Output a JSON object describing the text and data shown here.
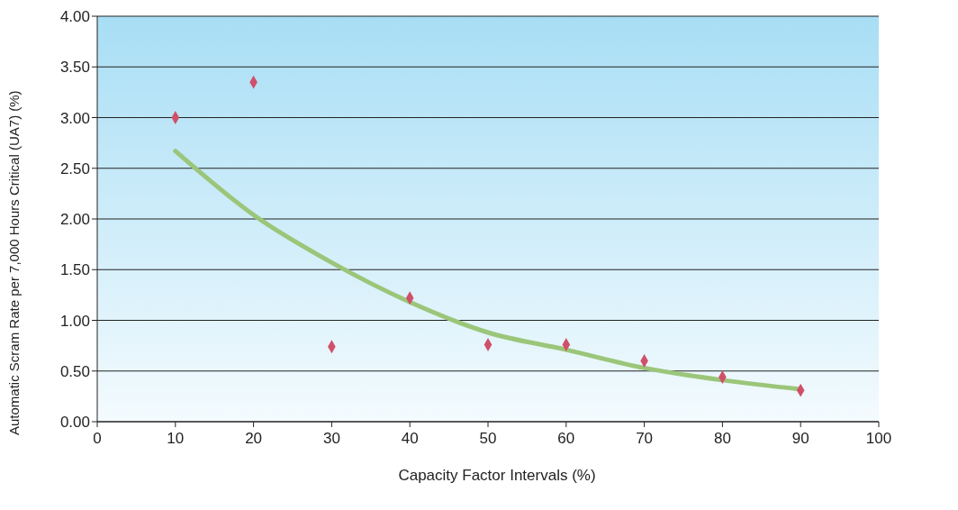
{
  "chart_data": {
    "type": "scatter",
    "xlabel": "Capacity Factor Intervals (%)",
    "ylabel": "Automatic Scram Rate per 7,000 Hours Critical (UA7) (%)",
    "xlim": [
      0,
      100
    ],
    "xticks": [
      0,
      10,
      20,
      30,
      40,
      50,
      60,
      70,
      80,
      90,
      100
    ],
    "ylim": [
      0,
      4
    ],
    "yticks": [
      {
        "value": 0,
        "label": "0.00"
      },
      {
        "value": 0.5,
        "label": "0.50"
      },
      {
        "value": 1,
        "label": "1.00"
      },
      {
        "value": 1.5,
        "label": "1.50"
      },
      {
        "value": 2,
        "label": "2.00"
      },
      {
        "value": 2.5,
        "label": "2.50"
      },
      {
        "value": 3,
        "label": "3.00"
      },
      {
        "value": 3.5,
        "label": "3.50"
      },
      {
        "value": 4,
        "label": "4.00"
      }
    ],
    "grid": "y",
    "series": [
      {
        "color": "#d0506a",
        "marker": "diamond",
        "x": [
          10,
          20,
          30,
          40,
          50,
          60,
          70,
          80,
          90
        ],
        "values": [
          3.0,
          3.35,
          0.74,
          1.22,
          0.76,
          0.76,
          0.6,
          0.44,
          0.31
        ]
      },
      {
        "type": "line",
        "color": "#9bc67a",
        "marker": "none",
        "line_style": "solid",
        "x": [
          10,
          20,
          30,
          40,
          50,
          60,
          70,
          80,
          90
        ],
        "values": [
          2.67,
          2.04,
          1.57,
          1.18,
          0.88,
          0.71,
          0.53,
          0.41,
          0.32
        ]
      }
    ]
  }
}
